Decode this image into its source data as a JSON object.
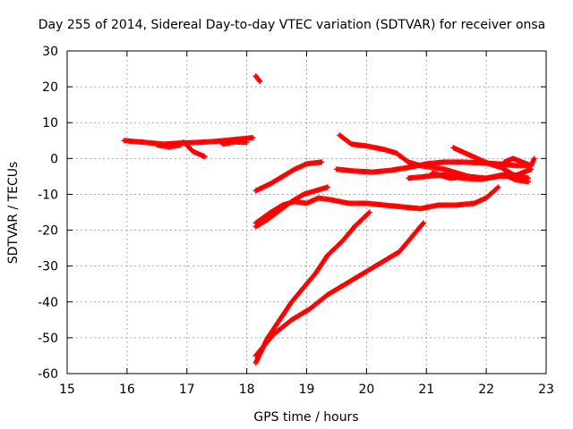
{
  "chart_data": {
    "type": "scatter",
    "title": "Day 255 of 2014, Sidereal Day-to-day VTEC variation (SDTVAR) for receiver onsa",
    "xlabel": "GPS time / hours",
    "ylabel": "SDTVAR / TECUs",
    "xlim": [
      15,
      23
    ],
    "ylim": [
      -60,
      30
    ],
    "xticks": [
      "15",
      "16",
      "17",
      "18",
      "19",
      "20",
      "21",
      "22",
      "23"
    ],
    "yticks": [
      "-60",
      "-50",
      "-40",
      "-30",
      "-20",
      "-10",
      "0",
      "10",
      "20",
      "30"
    ],
    "grid": true,
    "marker_color": "#ff0000",
    "series": [
      {
        "points": [
          [
            15.95,
            5
          ],
          [
            16.3,
            4.5
          ],
          [
            16.6,
            4
          ],
          [
            16.9,
            4.3
          ],
          [
            17.2,
            4.5
          ],
          [
            17.5,
            4.8
          ],
          [
            17.8,
            5.3
          ],
          [
            18.1,
            5.8
          ]
        ]
      },
      {
        "points": [
          [
            16.7,
            3.5
          ],
          [
            16.95,
            4.5
          ],
          [
            17.1,
            2
          ],
          [
            17.3,
            0.5
          ]
        ]
      },
      {
        "points": [
          [
            16.5,
            3.8
          ],
          [
            16.7,
            3.2
          ],
          [
            16.9,
            3.8
          ]
        ]
      },
      {
        "points": [
          [
            17.6,
            4
          ],
          [
            17.8,
            4.6
          ],
          [
            18.0,
            4.5
          ]
        ]
      },
      {
        "points": [
          [
            18.15,
            23
          ],
          [
            18.22,
            21.5
          ]
        ]
      },
      {
        "points": [
          [
            18.15,
            -9
          ],
          [
            18.4,
            -7
          ],
          [
            18.6,
            -5
          ],
          [
            18.8,
            -3
          ],
          [
            19.0,
            -1.5
          ],
          [
            19.25,
            -1
          ]
        ]
      },
      {
        "points": [
          [
            18.15,
            -19
          ],
          [
            18.35,
            -17
          ],
          [
            18.55,
            -14.5
          ],
          [
            18.75,
            -12
          ],
          [
            18.95,
            -10
          ],
          [
            19.15,
            -9
          ],
          [
            19.35,
            -8
          ]
        ]
      },
      {
        "points": [
          [
            18.15,
            -18
          ],
          [
            18.4,
            -15
          ],
          [
            18.6,
            -13
          ],
          [
            18.8,
            -12
          ],
          [
            19.0,
            -12.5
          ],
          [
            19.2,
            -11
          ],
          [
            19.4,
            -11.5
          ],
          [
            19.7,
            -12.5
          ],
          [
            20.0,
            -12.5
          ],
          [
            20.3,
            -13
          ],
          [
            20.6,
            -13.5
          ],
          [
            20.9,
            -14
          ],
          [
            21.2,
            -13
          ],
          [
            21.5,
            -13
          ],
          [
            21.8,
            -12.5
          ],
          [
            22.0,
            -11
          ],
          [
            22.2,
            -8
          ]
        ]
      },
      {
        "points": [
          [
            18.15,
            -57
          ],
          [
            18.35,
            -50
          ],
          [
            18.55,
            -45
          ],
          [
            18.75,
            -40
          ],
          [
            18.95,
            -36
          ],
          [
            19.15,
            -32
          ],
          [
            19.35,
            -27
          ],
          [
            19.6,
            -23
          ],
          [
            19.8,
            -19
          ],
          [
            20.05,
            -15
          ]
        ]
      },
      {
        "points": [
          [
            18.15,
            -55
          ],
          [
            18.45,
            -49
          ],
          [
            18.75,
            -45
          ],
          [
            19.05,
            -42
          ],
          [
            19.35,
            -38
          ],
          [
            19.65,
            -35
          ],
          [
            19.95,
            -32
          ],
          [
            20.25,
            -29
          ],
          [
            20.55,
            -26
          ],
          [
            20.75,
            -22
          ],
          [
            20.95,
            -18
          ]
        ]
      },
      {
        "points": [
          [
            19.55,
            6.5
          ],
          [
            19.75,
            4
          ],
          [
            20.0,
            3.5
          ],
          [
            20.3,
            2.5
          ],
          [
            20.5,
            1.5
          ],
          [
            20.7,
            -1
          ],
          [
            20.9,
            -2
          ],
          [
            21.1,
            -2.5
          ],
          [
            21.3,
            -3
          ],
          [
            21.5,
            -4
          ],
          [
            21.7,
            -5
          ]
        ]
      },
      {
        "points": [
          [
            19.5,
            -3
          ],
          [
            19.8,
            -3.5
          ],
          [
            20.1,
            -3.8
          ],
          [
            20.4,
            -3.3
          ],
          [
            20.7,
            -2.5
          ],
          [
            21.0,
            -1.5
          ],
          [
            21.3,
            -1
          ],
          [
            21.6,
            -1
          ],
          [
            21.9,
            -1.2
          ],
          [
            22.2,
            -1.5
          ],
          [
            22.5,
            -2
          ],
          [
            22.75,
            -2
          ]
        ]
      },
      {
        "points": [
          [
            20.7,
            -5.5
          ],
          [
            21.0,
            -5
          ],
          [
            21.3,
            -4.5
          ],
          [
            21.6,
            -5.5
          ],
          [
            21.9,
            -5.8
          ],
          [
            22.2,
            -5
          ],
          [
            22.45,
            -5
          ],
          [
            22.6,
            -4
          ],
          [
            22.75,
            -3
          ]
        ]
      },
      {
        "points": [
          [
            21.1,
            -4
          ],
          [
            21.4,
            -5.5
          ],
          [
            21.7,
            -5
          ],
          [
            22.0,
            -5.5
          ],
          [
            22.3,
            -4.5
          ],
          [
            22.5,
            -6
          ],
          [
            22.7,
            -6.5
          ]
        ]
      },
      {
        "points": [
          [
            21.45,
            3
          ],
          [
            21.65,
            1.5
          ],
          [
            21.85,
            0
          ],
          [
            22.05,
            -1.5
          ],
          [
            22.25,
            -2.5
          ],
          [
            22.45,
            -4.5
          ],
          [
            22.7,
            -5.5
          ]
        ]
      },
      {
        "points": [
          [
            22.3,
            -1
          ],
          [
            22.45,
            0
          ],
          [
            22.6,
            -1
          ],
          [
            22.75,
            -2
          ],
          [
            22.8,
            0
          ]
        ]
      }
    ]
  }
}
